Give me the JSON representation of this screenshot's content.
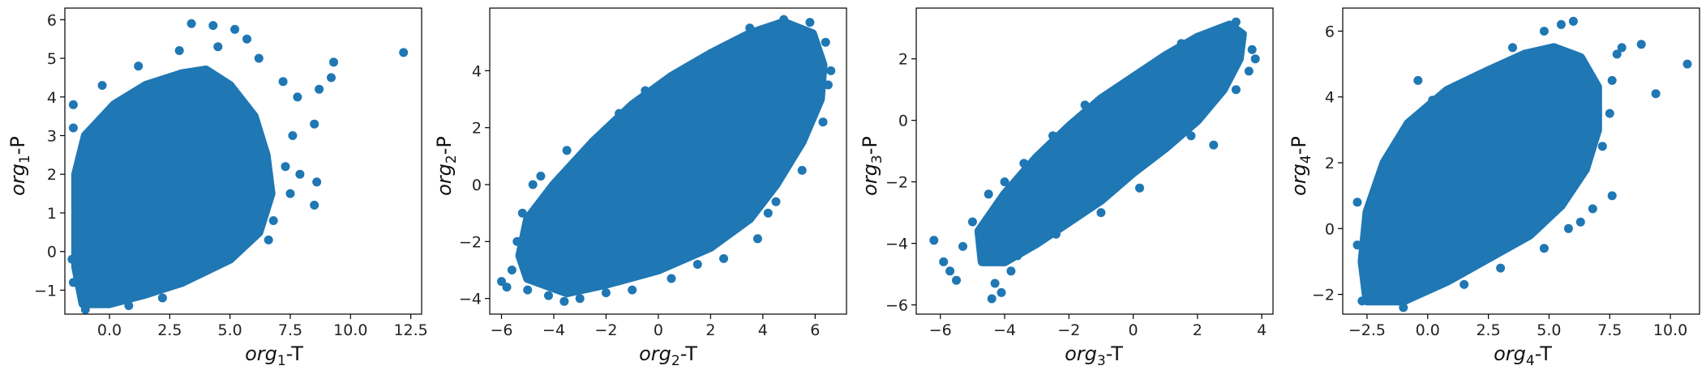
{
  "chart_data": [
    {
      "type": "scatter",
      "xlabel": {
        "italic": "org",
        "sub": "1",
        "suffix": "-T"
      },
      "ylabel": {
        "italic": "org",
        "sub": "1",
        "suffix": "-P"
      },
      "xlim": [
        -1.85,
        12.95
      ],
      "ylim": [
        -1.62,
        6.3
      ],
      "xticks": [
        0.0,
        2.5,
        5.0,
        7.5,
        10.0,
        12.5
      ],
      "xtick_labels": [
        "0.0",
        "2.5",
        "5.0",
        "7.5",
        "10.0",
        "12.5"
      ],
      "yticks": [
        -1,
        0,
        1,
        2,
        3,
        4,
        5,
        6
      ],
      "ytick_labels": [
        "−1",
        "0",
        "1",
        "2",
        "3",
        "4",
        "5",
        "6"
      ],
      "cloud": {
        "core": [
          [
            -1.1,
            -1.35
          ],
          [
            -1.4,
            -0.4
          ],
          [
            -1.4,
            2.0
          ],
          [
            -1.0,
            3.0
          ],
          [
            0.2,
            3.8
          ],
          [
            1.5,
            4.3
          ],
          [
            3.0,
            4.6
          ],
          [
            4.0,
            4.7
          ],
          [
            5.0,
            4.3
          ],
          [
            6.0,
            3.5
          ],
          [
            6.5,
            2.5
          ],
          [
            6.7,
            1.5
          ],
          [
            6.2,
            0.5
          ],
          [
            5.0,
            -0.2
          ],
          [
            3.0,
            -0.8
          ],
          [
            1.5,
            -1.1
          ],
          [
            0.0,
            -1.35
          ]
        ],
        "points": [
          [
            12.2,
            5.15
          ],
          [
            9.3,
            4.9
          ],
          [
            9.2,
            4.5
          ],
          [
            8.7,
            4.2
          ],
          [
            8.5,
            3.3
          ],
          [
            8.6,
            1.8
          ],
          [
            8.5,
            1.2
          ],
          [
            3.4,
            5.9
          ],
          [
            4.3,
            5.85
          ],
          [
            5.2,
            5.75
          ],
          [
            5.7,
            5.5
          ],
          [
            2.9,
            5.2
          ],
          [
            7.2,
            4.4
          ],
          [
            7.8,
            4.0
          ],
          [
            7.6,
            3.0
          ],
          [
            7.3,
            2.2
          ],
          [
            7.9,
            2.0
          ],
          [
            7.5,
            1.5
          ],
          [
            6.8,
            0.8
          ],
          [
            -1.5,
            3.8
          ],
          [
            -1.5,
            3.2
          ],
          [
            -1.55,
            -0.2
          ],
          [
            -1.5,
            -0.8
          ],
          [
            -0.3,
            4.3
          ],
          [
            1.2,
            4.8
          ],
          [
            4.5,
            5.3
          ],
          [
            6.2,
            5.0
          ],
          [
            -1.0,
            -1.5
          ],
          [
            0.8,
            -1.4
          ],
          [
            2.2,
            -1.2
          ],
          [
            6.6,
            0.3
          ]
        ]
      }
    },
    {
      "type": "scatter",
      "xlabel": {
        "italic": "org",
        "sub": "2",
        "suffix": "-T"
      },
      "ylabel": {
        "italic": "org",
        "sub": "2",
        "suffix": "-P"
      },
      "xlim": [
        -6.45,
        7.2
      ],
      "ylim": [
        -4.55,
        6.2
      ],
      "xticks": [
        -6,
        -4,
        -2,
        0,
        2,
        4,
        6
      ],
      "xtick_labels": [
        "−6",
        "−4",
        "−2",
        "0",
        "2",
        "4",
        "6"
      ],
      "yticks": [
        -4,
        -2,
        0,
        2,
        4
      ],
      "ytick_labels": [
        "−4",
        "−2",
        "0",
        "2",
        "4"
      ],
      "cloud": {
        "core": [
          [
            -5.0,
            -3.3
          ],
          [
            -5.3,
            -2.5
          ],
          [
            -5.0,
            -1.2
          ],
          [
            -4.0,
            0.0
          ],
          [
            -2.5,
            1.5
          ],
          [
            -1.0,
            2.8
          ],
          [
            0.5,
            3.8
          ],
          [
            2.0,
            4.6
          ],
          [
            3.5,
            5.3
          ],
          [
            4.8,
            5.7
          ],
          [
            5.9,
            5.3
          ],
          [
            6.3,
            4.2
          ],
          [
            6.2,
            3.0
          ],
          [
            5.5,
            1.5
          ],
          [
            4.5,
            0.0
          ],
          [
            3.5,
            -1.2
          ],
          [
            2.0,
            -2.2
          ],
          [
            0.0,
            -3.0
          ],
          [
            -2.0,
            -3.5
          ],
          [
            -3.5,
            -3.8
          ]
        ],
        "points": [
          [
            -6.0,
            -3.4
          ],
          [
            -5.8,
            -3.6
          ],
          [
            -5.6,
            -3.0
          ],
          [
            -5.4,
            -2.0
          ],
          [
            -5.2,
            -1.0
          ],
          [
            -4.8,
            0.0
          ],
          [
            -4.5,
            0.3
          ],
          [
            -3.5,
            1.2
          ],
          [
            -1.5,
            2.5
          ],
          [
            -0.5,
            3.3
          ],
          [
            1.2,
            4.0
          ],
          [
            2.5,
            4.8
          ],
          [
            3.5,
            5.5
          ],
          [
            4.8,
            5.8
          ],
          [
            5.8,
            5.7
          ],
          [
            6.4,
            5.0
          ],
          [
            6.6,
            4.0
          ],
          [
            6.5,
            3.5
          ],
          [
            6.3,
            2.2
          ],
          [
            5.5,
            0.5
          ],
          [
            4.5,
            -0.6
          ],
          [
            4.2,
            -1.0
          ],
          [
            3.8,
            -1.9
          ],
          [
            2.5,
            -2.6
          ],
          [
            1.5,
            -2.8
          ],
          [
            0.5,
            -3.3
          ],
          [
            -1.0,
            -3.7
          ],
          [
            -2.0,
            -3.8
          ],
          [
            -3.0,
            -4.0
          ],
          [
            -3.6,
            -4.1
          ],
          [
            -4.2,
            -3.9
          ],
          [
            -5.0,
            -3.7
          ]
        ]
      }
    },
    {
      "type": "scatter",
      "xlabel": {
        "italic": "org",
        "sub": "3",
        "suffix": "-T"
      },
      "ylabel": {
        "italic": "org",
        "sub": "3",
        "suffix": "-P"
      },
      "xlim": [
        -6.75,
        4.35
      ],
      "ylim": [
        -6.3,
        3.65
      ],
      "xticks": [
        -6,
        -4,
        -2,
        0,
        2,
        4
      ],
      "xtick_labels": [
        "−6",
        "−4",
        "−2",
        "0",
        "2",
        "4"
      ],
      "yticks": [
        -6,
        -4,
        -2,
        0,
        2
      ],
      "ytick_labels": [
        "−6",
        "−4",
        "−2",
        "0",
        "2"
      ],
      "cloud": {
        "core": [
          [
            -4.7,
            -4.6
          ],
          [
            -4.8,
            -3.6
          ],
          [
            -4.0,
            -2.4
          ],
          [
            -3.0,
            -1.2
          ],
          [
            -2.0,
            -0.2
          ],
          [
            -1.0,
            0.7
          ],
          [
            0.0,
            1.4
          ],
          [
            1.0,
            2.1
          ],
          [
            2.0,
            2.7
          ],
          [
            3.0,
            3.1
          ],
          [
            3.4,
            2.8
          ],
          [
            3.3,
            2.0
          ],
          [
            2.8,
            1.0
          ],
          [
            2.0,
            0.0
          ],
          [
            1.0,
            -0.9
          ],
          [
            0.0,
            -1.7
          ],
          [
            -1.0,
            -2.6
          ],
          [
            -2.0,
            -3.3
          ],
          [
            -3.0,
            -4.0
          ],
          [
            -4.0,
            -4.6
          ]
        ],
        "points": [
          [
            -6.2,
            -3.9
          ],
          [
            -5.9,
            -4.6
          ],
          [
            -5.7,
            -4.9
          ],
          [
            -5.5,
            -5.2
          ],
          [
            -5.3,
            -4.1
          ],
          [
            -5.0,
            -3.3
          ],
          [
            -4.5,
            -2.4
          ],
          [
            -4.0,
            -2.0
          ],
          [
            -3.4,
            -1.4
          ],
          [
            -4.3,
            -5.3
          ],
          [
            -4.1,
            -5.6
          ],
          [
            -4.4,
            -5.8
          ],
          [
            -3.8,
            -4.9
          ],
          [
            -2.5,
            -0.5
          ],
          [
            -1.5,
            0.5
          ],
          [
            0.5,
            1.6
          ],
          [
            1.5,
            2.5
          ],
          [
            2.5,
            2.9
          ],
          [
            3.2,
            3.2
          ],
          [
            3.7,
            2.3
          ],
          [
            3.8,
            2.0
          ],
          [
            3.6,
            1.6
          ],
          [
            3.2,
            1.0
          ],
          [
            2.5,
            -0.8
          ],
          [
            1.8,
            -0.5
          ],
          [
            0.2,
            -2.2
          ],
          [
            -1.0,
            -3.0
          ],
          [
            -2.4,
            -3.7
          ],
          [
            -3.6,
            -4.4
          ]
        ]
      }
    },
    {
      "type": "scatter",
      "xlabel": {
        "italic": "org",
        "sub": "4",
        "suffix": "-T"
      },
      "ylabel": {
        "italic": "org",
        "sub": "4",
        "suffix": "-P"
      },
      "xlim": [
        -3.5,
        11.2
      ],
      "ylim": [
        -2.6,
        6.7
      ],
      "xticks": [
        -2.5,
        0.0,
        2.5,
        5.0,
        7.5,
        10.0
      ],
      "xtick_labels": [
        "−2.5",
        "0.0",
        "2.5",
        "5.0",
        "7.5",
        "10.0"
      ],
      "yticks": [
        -2,
        0,
        2,
        4,
        6
      ],
      "ytick_labels": [
        "−2",
        "0",
        "2",
        "4",
        "6"
      ],
      "cloud": {
        "core": [
          [
            -2.5,
            -2.2
          ],
          [
            -2.7,
            -1.0
          ],
          [
            -2.5,
            0.5
          ],
          [
            -1.8,
            2.0
          ],
          [
            -0.8,
            3.2
          ],
          [
            0.8,
            4.2
          ],
          [
            2.5,
            4.8
          ],
          [
            4.0,
            5.3
          ],
          [
            5.2,
            5.5
          ],
          [
            6.3,
            5.2
          ],
          [
            7.0,
            4.3
          ],
          [
            7.0,
            3.0
          ],
          [
            6.5,
            1.8
          ],
          [
            5.5,
            0.7
          ],
          [
            4.2,
            -0.2
          ],
          [
            2.5,
            -0.9
          ],
          [
            0.8,
            -1.6
          ],
          [
            -1.0,
            -2.2
          ]
        ],
        "points": [
          [
            10.7,
            5.0
          ],
          [
            9.4,
            4.1
          ],
          [
            8.8,
            5.6
          ],
          [
            8.0,
            5.5
          ],
          [
            7.8,
            5.3
          ],
          [
            7.6,
            4.5
          ],
          [
            7.5,
            3.5
          ],
          [
            7.2,
            2.5
          ],
          [
            7.6,
            1.0
          ],
          [
            6.8,
            0.6
          ],
          [
            6.3,
            0.2
          ],
          [
            5.5,
            6.2
          ],
          [
            6.0,
            6.3
          ],
          [
            4.8,
            6.0
          ],
          [
            3.5,
            5.5
          ],
          [
            -0.4,
            4.5
          ],
          [
            0.2,
            3.9
          ],
          [
            -1.5,
            2.0
          ],
          [
            -2.9,
            -0.5
          ],
          [
            -2.9,
            0.8
          ],
          [
            -2.7,
            -2.2
          ],
          [
            -1.0,
            -2.4
          ],
          [
            1.5,
            -1.7
          ],
          [
            3.0,
            -1.2
          ],
          [
            4.8,
            -0.6
          ],
          [
            5.8,
            0.0
          ]
        ]
      }
    }
  ],
  "style": {
    "marker_color": "#1f77b4",
    "axis_color": "#000000"
  }
}
